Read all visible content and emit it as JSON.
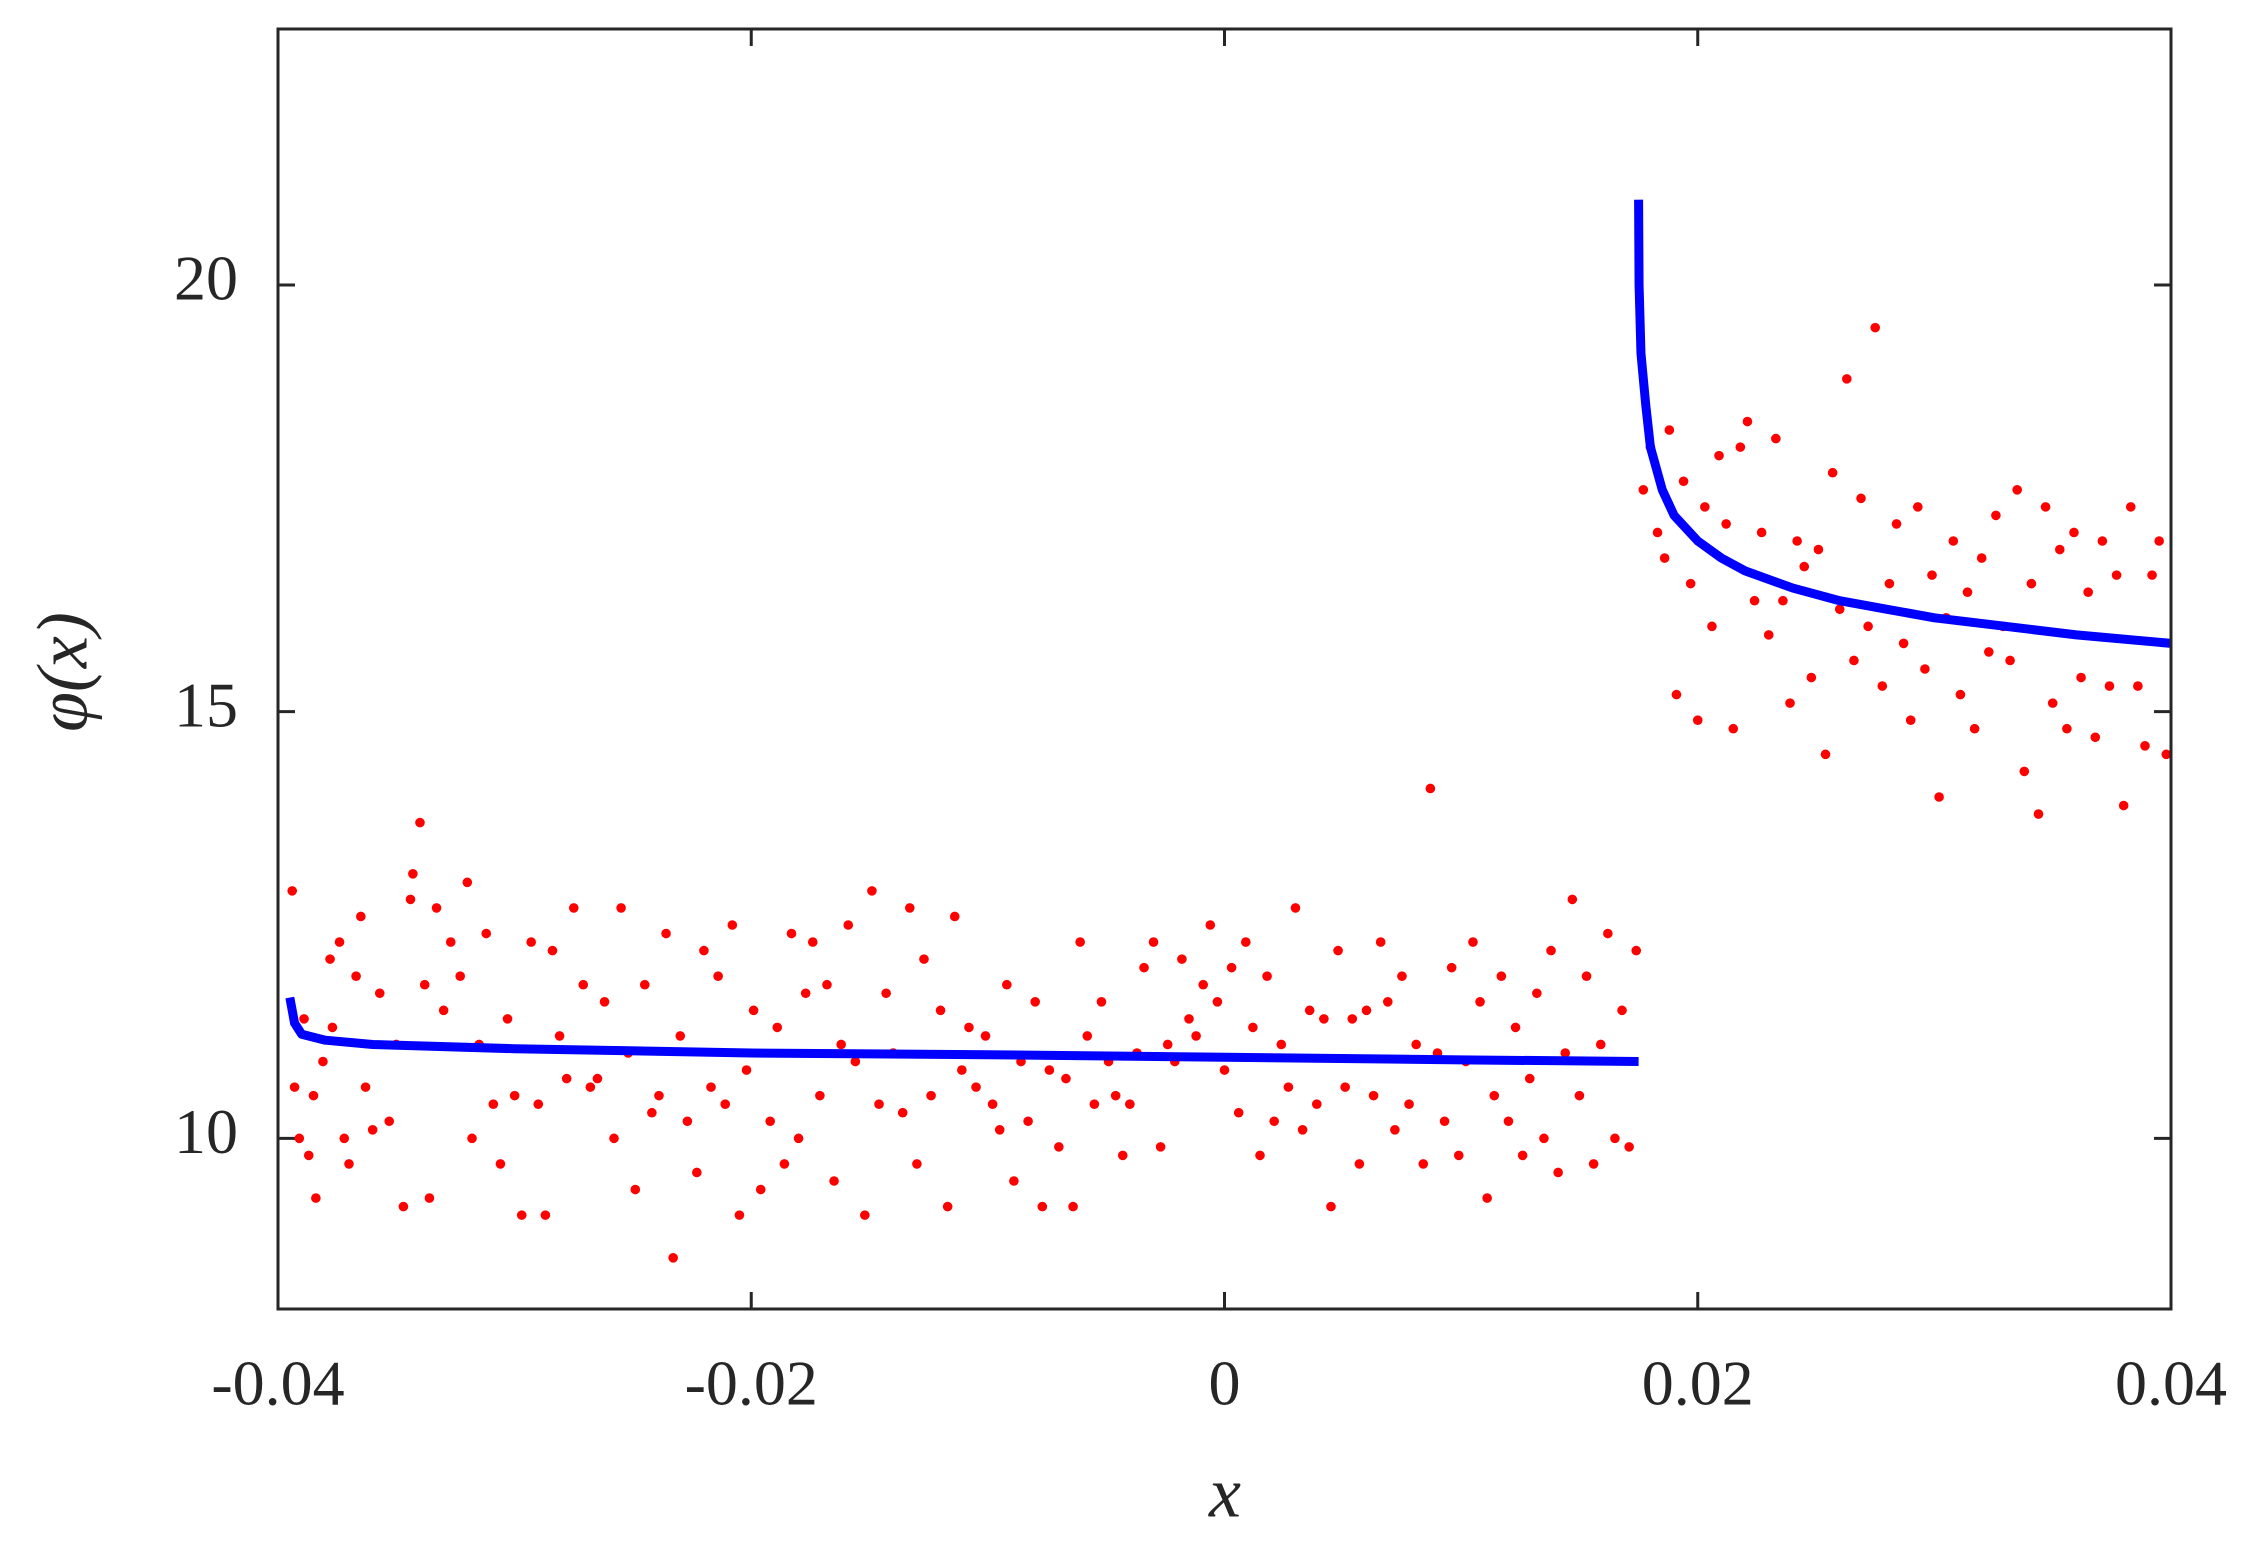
{
  "chart_data": {
    "type": "scatter",
    "xlabel": "x",
    "ylabel": "φ(x)",
    "xlim": [
      -0.04,
      0.04
    ],
    "xticks": [
      -0.04,
      -0.02,
      0,
      0.02,
      0.04
    ],
    "ylim": [
      8,
      23
    ],
    "yticks": [
      10,
      15,
      20
    ],
    "series": [
      {
        "type": "scatter",
        "color": "#ff0000",
        "x": [
          -0.0394,
          -0.0393,
          -0.0391,
          -0.0389,
          -0.0387,
          -0.0385,
          -0.0384,
          -0.0381,
          -0.0378,
          -0.0377,
          -0.0374,
          -0.0372,
          -0.037,
          -0.0367,
          -0.0365,
          -0.0363,
          -0.036,
          -0.0357,
          -0.0353,
          -0.035,
          -0.0347,
          -0.0344,
          -0.0343,
          -0.034,
          -0.0338,
          -0.0336,
          -0.0333,
          -0.033,
          -0.0327,
          -0.0323,
          -0.032,
          -0.0318,
          -0.0315,
          -0.0312,
          -0.0309,
          -0.0306,
          -0.0303,
          -0.03,
          -0.0297,
          -0.0293,
          -0.029,
          -0.0287,
          -0.0284,
          -0.0281,
          -0.0278,
          -0.0275,
          -0.0271,
          -0.0268,
          -0.0265,
          -0.0262,
          -0.0258,
          -0.0255,
          -0.0252,
          -0.0249,
          -0.0245,
          -0.0242,
          -0.0239,
          -0.0236,
          -0.0233,
          -0.023,
          -0.0227,
          -0.0223,
          -0.022,
          -0.0217,
          -0.0214,
          -0.0211,
          -0.0208,
          -0.0205,
          -0.0202,
          -0.0199,
          -0.0196,
          -0.0192,
          -0.0189,
          -0.0186,
          -0.0183,
          -0.018,
          -0.0177,
          -0.0174,
          -0.0171,
          -0.0168,
          -0.0165,
          -0.0162,
          -0.0159,
          -0.0156,
          -0.0152,
          -0.0149,
          -0.0146,
          -0.0143,
          -0.014,
          -0.0136,
          -0.0133,
          -0.013,
          -0.0127,
          -0.0124,
          -0.012,
          -0.0117,
          -0.0114,
          -0.0111,
          -0.0108,
          -0.0105,
          -0.0101,
          -0.0098,
          -0.0095,
          -0.0092,
          -0.0089,
          -0.0086,
          -0.0083,
          -0.008,
          -0.0077,
          -0.0074,
          -0.007,
          -0.0067,
          -0.0064,
          -0.0061,
          -0.0058,
          -0.0055,
          -0.0052,
          -0.0049,
          -0.0046,
          -0.0043,
          -0.004,
          -0.0037,
          -0.0034,
          -0.003,
          -0.0027,
          -0.0024,
          -0.0021,
          -0.0018,
          -0.0015,
          -0.0012,
          -0.0009,
          -0.0006,
          -0.0003,
          0,
          0.0003,
          0.0006,
          0.0009,
          0.0012,
          0.0015,
          0.0018,
          0.0021,
          0.0024,
          0.0027,
          0.003,
          0.0033,
          0.0036,
          0.0039,
          0.0042,
          0.0045,
          0.0048,
          0.0051,
          0.0054,
          0.0057,
          0.006,
          0.0063,
          0.0066,
          0.0069,
          0.0072,
          0.0075,
          0.0078,
          0.0081,
          0.0084,
          0.0087,
          0.009,
          0.0093,
          0.0096,
          0.0099,
          0.0102,
          0.0105,
          0.0108,
          0.0111,
          0.0114,
          0.0117,
          0.012,
          0.0123,
          0.0126,
          0.0129,
          0.0132,
          0.0135,
          0.0138,
          0.0141,
          0.0144,
          0.0147,
          0.015,
          0.0153,
          0.0156,
          0.0159,
          0.0162,
          0.0165,
          0.0168,
          0.0171,
          0.0174,
          0.0177,
          0.018,
          0.0183,
          0.0186,
          0.0188,
          0.0191,
          0.0194,
          0.0197,
          0.02,
          0.0203,
          0.0206,
          0.0209,
          0.0212,
          0.0215,
          0.0218,
          0.0221,
          0.0224,
          0.0227,
          0.023,
          0.0233,
          0.0236,
          0.0239,
          0.0242,
          0.0245,
          0.0248,
          0.0251,
          0.0254,
          0.0257,
          0.026,
          0.0263,
          0.0266,
          0.0269,
          0.0272,
          0.0275,
          0.0278,
          0.0281,
          0.0284,
          0.0287,
          0.029,
          0.0293,
          0.0296,
          0.0299,
          0.0302,
          0.0305,
          0.0308,
          0.0311,
          0.0314,
          0.0317,
          0.032,
          0.0323,
          0.0326,
          0.0329,
          0.0332,
          0.0335,
          0.0338,
          0.0341,
          0.0344,
          0.0347,
          0.035,
          0.0353,
          0.0356,
          0.0359,
          0.0362,
          0.0365,
          0.0368,
          0.0371,
          0.0374,
          0.0377,
          0.038,
          0.0383,
          0.0386,
          0.0389,
          0.0392,
          0.0395,
          0.0398
        ],
        "values": [
          12.9,
          10.6,
          10.0,
          11.4,
          9.8,
          10.5,
          9.3,
          10.9,
          12.1,
          11.3,
          12.3,
          10.0,
          9.7,
          11.9,
          12.6,
          10.6,
          10.1,
          11.7,
          10.2,
          11.1,
          9.2,
          12.8,
          13.1,
          13.7,
          11.8,
          9.3,
          12.7,
          11.5,
          12.3,
          11.9,
          13.0,
          10.0,
          11.1,
          12.4,
          10.4,
          9.7,
          11.4,
          10.5,
          9.1,
          12.3,
          10.4,
          9.1,
          12.2,
          11.2,
          10.7,
          12.7,
          11.8,
          10.6,
          10.7,
          11.6,
          10.0,
          12.7,
          11.0,
          9.4,
          11.8,
          10.3,
          10.5,
          12.4,
          8.6,
          11.2,
          10.2,
          9.6,
          12.2,
          10.6,
          11.9,
          10.4,
          12.5,
          9.1,
          10.8,
          11.5,
          9.4,
          10.2,
          11.3,
          9.7,
          12.4,
          10.0,
          11.7,
          12.3,
          10.5,
          11.8,
          9.5,
          11.1,
          12.5,
          10.9,
          9.1,
          12.9,
          10.4,
          11.7,
          11.0,
          10.3,
          12.7,
          9.7,
          12.1,
          10.5,
          11.5,
          9.2,
          12.6,
          10.8,
          11.3,
          10.6,
          11.2,
          10.4,
          10.1,
          11.8,
          9.5,
          10.9,
          10.2,
          11.6,
          9.2,
          10.8,
          9.9,
          10.7,
          9.2,
          12.3,
          11.2,
          10.4,
          11.6,
          10.9,
          10.5,
          9.8,
          10.4,
          11.0,
          12.0,
          12.3,
          9.9,
          11.1,
          10.9,
          12.1,
          11.4,
          11.2,
          11.8,
          12.5,
          11.6,
          10.8,
          12.0,
          10.3,
          12.3,
          11.3,
          9.8,
          11.9,
          10.2,
          11.1,
          10.6,
          12.7,
          10.1,
          11.5,
          10.4,
          11.4,
          9.2,
          12.2,
          10.6,
          11.4,
          9.7,
          11.5,
          10.5,
          12.3,
          11.6,
          10.1,
          11.9,
          10.4,
          11.1,
          9.7,
          14.1,
          11.0,
          10.2,
          12.0,
          9.8,
          10.9,
          12.3,
          11.6,
          9.3,
          10.5,
          11.9,
          10.2,
          11.3,
          9.8,
          10.7,
          11.7,
          10.0,
          12.2,
          9.6,
          11.0,
          12.8,
          10.5,
          11.9,
          9.7,
          11.1,
          12.4,
          10.0,
          11.5,
          9.9,
          12.2,
          17.6,
          18.1,
          17.1,
          16.8,
          18.3,
          15.2,
          17.7,
          16.5,
          14.9,
          17.4,
          16.0,
          18.0,
          17.2,
          14.8,
          18.1,
          18.4,
          16.3,
          17.1,
          15.9,
          18.2,
          16.3,
          15.1,
          17.0,
          16.7,
          15.4,
          16.9,
          14.5,
          17.8,
          16.2,
          18.9,
          15.6,
          17.5,
          16.0,
          19.5,
          15.3,
          16.5,
          17.2,
          15.8,
          14.9,
          17.4,
          15.5,
          16.6,
          14.0,
          16.1,
          17.0,
          15.2,
          16.4,
          14.8,
          16.8,
          15.7,
          17.3,
          16.0,
          15.6,
          17.6,
          14.3,
          16.5,
          13.8,
          17.4,
          15.1,
          16.9,
          14.8,
          17.1,
          15.4,
          16.4,
          14.7,
          17.0,
          15.3,
          16.6,
          13.9,
          17.4,
          15.3,
          14.6,
          16.6,
          17.0,
          14.5
        ]
      },
      {
        "type": "line",
        "color": "#0000ff",
        "x": [
          -0.0395,
          -0.0393,
          -0.039,
          -0.038,
          -0.036,
          -0.03,
          -0.02,
          -0.01,
          0,
          0.01,
          0.0175,
          null,
          0.0175,
          0.01752,
          0.0176,
          0.0178,
          0.018,
          0.0185,
          0.019,
          0.02,
          0.021,
          0.022,
          0.024,
          0.026,
          0.028,
          0.03,
          0.033,
          0.036,
          0.04
        ],
        "values": [
          11.65,
          11.35,
          11.22,
          11.15,
          11.1,
          11.05,
          11.0,
          10.98,
          10.95,
          10.92,
          10.9,
          null,
          21.0,
          20.0,
          19.2,
          18.6,
          18.1,
          17.6,
          17.3,
          17.0,
          16.8,
          16.65,
          16.45,
          16.3,
          16.2,
          16.1,
          16.0,
          15.9,
          15.8
        ]
      }
    ]
  }
}
